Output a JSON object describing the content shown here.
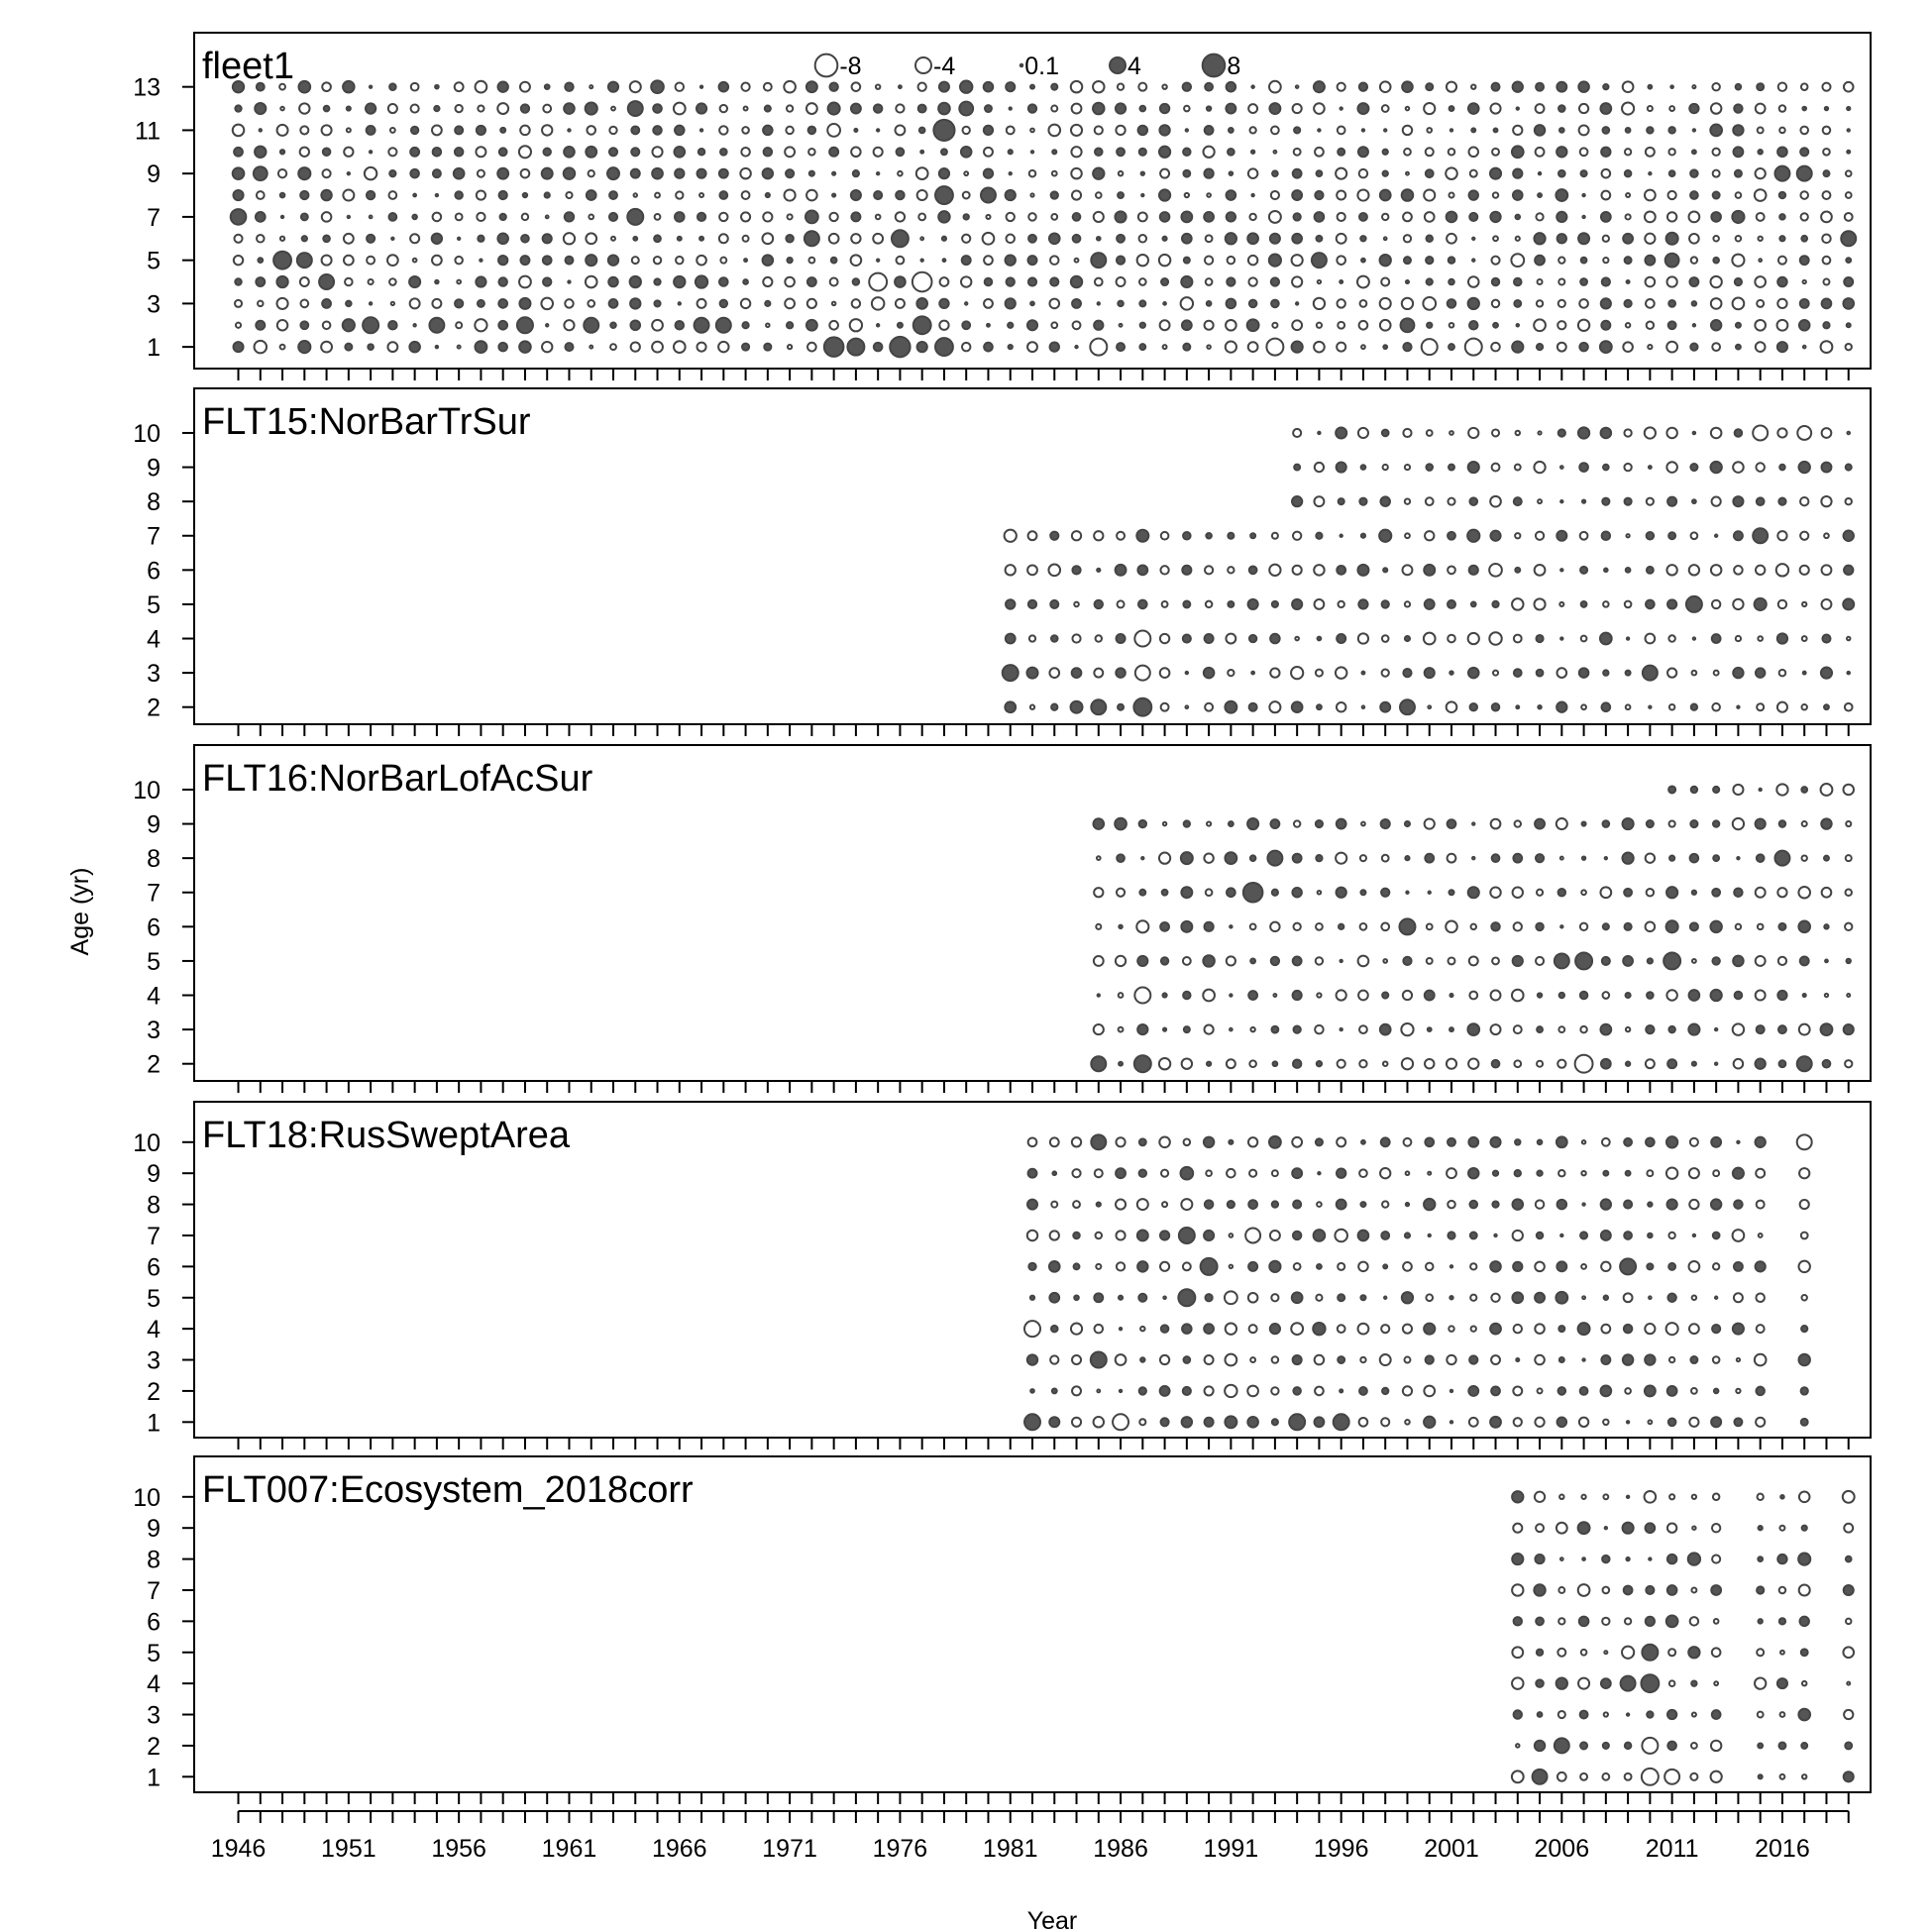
{
  "chart_data": {
    "type": "scatter",
    "subtype": "bubble residual plot (one panel per fleet)",
    "xlabel": "Year",
    "ylabel": "Age (yr)",
    "x_tick_labels": [
      "1946",
      "1951",
      "1956",
      "1961",
      "1966",
      "1971",
      "1976",
      "1981",
      "1986",
      "1991",
      "1996",
      "2001",
      "2006",
      "2011",
      "2016"
    ],
    "xlim": [
      1944,
      2020
    ],
    "legend": {
      "placement": "top-center",
      "entries": [
        {
          "label": "-8",
          "value": -8
        },
        {
          "label": "-4",
          "value": -4
        },
        {
          "label": "0.1",
          "value": 0.1
        },
        {
          "label": "4",
          "value": 4
        },
        {
          "label": "8",
          "value": 8
        }
      ]
    },
    "colors": {
      "positive_fill": "#555555",
      "negative_fill": "#ffffff",
      "stroke": "#444444"
    },
    "panels": [
      {
        "title": "fleet1",
        "years": [
          1946,
          2019
        ],
        "ages": [
          1,
          13
        ],
        "ytick_labels": [
          "1",
          "3",
          "5",
          "7",
          "9",
          "11",
          "13"
        ],
        "ylim": [
          0,
          15.5
        ],
        "highlights": [
          {
            "year": 1946,
            "age": 7,
            "value": 3.8
          },
          {
            "year": 1947,
            "age": 9,
            "value": 3.0
          },
          {
            "year": 1948,
            "age": 5,
            "value": 5.0
          },
          {
            "year": 1949,
            "age": 5,
            "value": 3.5
          },
          {
            "year": 1950,
            "age": 4,
            "value": 3.5
          },
          {
            "year": 1952,
            "age": 2,
            "value": 4.0
          },
          {
            "year": 1955,
            "age": 2,
            "value": 3.5
          },
          {
            "year": 1959,
            "age": 2,
            "value": 4.0
          },
          {
            "year": 1962,
            "age": 2,
            "value": 3.5
          },
          {
            "year": 1964,
            "age": 12,
            "value": 3.5
          },
          {
            "year": 1964,
            "age": 7,
            "value": 4.0
          },
          {
            "year": 1965,
            "age": 13,
            "value": 2.5
          },
          {
            "year": 1967,
            "age": 2,
            "value": 3.5
          },
          {
            "year": 1968,
            "age": 2,
            "value": 3.5
          },
          {
            "year": 1972,
            "age": 6,
            "value": 3.5
          },
          {
            "year": 1973,
            "age": 1,
            "value": 6.0
          },
          {
            "year": 1974,
            "age": 1,
            "value": 4.5
          },
          {
            "year": 1975,
            "age": 4,
            "value": -5.0
          },
          {
            "year": 1976,
            "age": 6,
            "value": 4.5
          },
          {
            "year": 1976,
            "age": 1,
            "value": 6.5
          },
          {
            "year": 1977,
            "age": 4,
            "value": -6.0
          },
          {
            "year": 1977,
            "age": 2,
            "value": 5.0
          },
          {
            "year": 1978,
            "age": 11,
            "value": 7.0
          },
          {
            "year": 1978,
            "age": 8,
            "value": 5.0
          },
          {
            "year": 1978,
            "age": 1,
            "value": 5.0
          },
          {
            "year": 1979,
            "age": 12,
            "value": 3.0
          },
          {
            "year": 1980,
            "age": 8,
            "value": 3.5
          },
          {
            "year": 1985,
            "age": 5,
            "value": 3.5
          },
          {
            "year": 1985,
            "age": 1,
            "value": -4.5
          },
          {
            "year": 1993,
            "age": 1,
            "value": -4.5
          },
          {
            "year": 1995,
            "age": 5,
            "value": 3.5
          },
          {
            "year": 1999,
            "age": 2,
            "value": 3.0
          },
          {
            "year": 2000,
            "age": 1,
            "value": -4.0
          },
          {
            "year": 2002,
            "age": 1,
            "value": -4.5
          },
          {
            "year": 2011,
            "age": 5,
            "value": 3.0
          },
          {
            "year": 2016,
            "age": 9,
            "value": 3.5
          },
          {
            "year": 2017,
            "age": 9,
            "value": 3.5
          },
          {
            "year": 2019,
            "age": 6,
            "value": 3.5
          }
        ]
      },
      {
        "title": "FLT15:NorBarTrSur",
        "ytick_labels": [
          "2",
          "3",
          "4",
          "5",
          "6",
          "7",
          "8",
          "9",
          "10"
        ],
        "ylim": [
          1.5,
          11.3
        ],
        "blocks": [
          {
            "years": [
              1981,
              1993
            ],
            "ages": [
              2,
              7
            ]
          },
          {
            "years": [
              1994,
              2019
            ],
            "ages": [
              2,
              10
            ]
          }
        ],
        "highlights": [
          {
            "year": 1981,
            "age": 3,
            "value": 4.0
          },
          {
            "year": 1985,
            "age": 2,
            "value": 3.5
          },
          {
            "year": 1987,
            "age": 2,
            "value": 5.0
          },
          {
            "year": 1987,
            "age": 4,
            "value": -4.0
          },
          {
            "year": 1987,
            "age": 3,
            "value": -3.5
          },
          {
            "year": 1999,
            "age": 2,
            "value": 3.5
          },
          {
            "year": 2010,
            "age": 3,
            "value": 3.5
          },
          {
            "year": 2012,
            "age": 5,
            "value": 4.0
          },
          {
            "year": 2015,
            "age": 7,
            "value": 3.5
          },
          {
            "year": 2015,
            "age": 10,
            "value": -3.5
          },
          {
            "year": 2017,
            "age": 10,
            "value": -3.0
          }
        ]
      },
      {
        "title": "FLT16:NorBarLofAcSur",
        "ytick_labels": [
          "2",
          "3",
          "4",
          "5",
          "6",
          "7",
          "8",
          "9",
          "10"
        ],
        "ylim": [
          1.5,
          11.3
        ],
        "blocks": [
          {
            "years": [
              1985,
              2010
            ],
            "ages": [
              2,
              9
            ]
          },
          {
            "years": [
              2011,
              2019
            ],
            "ages": [
              2,
              10
            ]
          }
        ],
        "highlights": [
          {
            "year": 1985,
            "age": 2,
            "value": 3.5
          },
          {
            "year": 1987,
            "age": 2,
            "value": 4.5
          },
          {
            "year": 1987,
            "age": 4,
            "value": -4.0
          },
          {
            "year": 1992,
            "age": 7,
            "value": 6.0
          },
          {
            "year": 1993,
            "age": 8,
            "value": 3.5
          },
          {
            "year": 1999,
            "age": 6,
            "value": 4.0
          },
          {
            "year": 2006,
            "age": 5,
            "value": 3.5
          },
          {
            "year": 2007,
            "age": 5,
            "value": 4.5
          },
          {
            "year": 2007,
            "age": 2,
            "value": -5.0
          },
          {
            "year": 2011,
            "age": 5,
            "value": 4.5
          },
          {
            "year": 2016,
            "age": 8,
            "value": 3.5
          },
          {
            "year": 2017,
            "age": 2,
            "value": 3.5
          }
        ]
      },
      {
        "title": "FLT18:RusSweptArea",
        "ytick_labels": [
          "1",
          "2",
          "3",
          "4",
          "5",
          "6",
          "7",
          "8",
          "9",
          "10"
        ],
        "ylim": [
          0.5,
          11.3
        ],
        "blocks": [
          {
            "years": [
              1982,
              2015
            ],
            "ages": [
              1,
              10
            ]
          },
          {
            "years": [
              2017,
              2017
            ],
            "ages": [
              1,
              10
            ]
          }
        ],
        "highlights": [
          {
            "year": 1982,
            "age": 1,
            "value": 4.0
          },
          {
            "year": 1982,
            "age": 4,
            "value": -4.0
          },
          {
            "year": 1985,
            "age": 3,
            "value": 4.0
          },
          {
            "year": 1985,
            "age": 10,
            "value": 3.5
          },
          {
            "year": 1986,
            "age": 1,
            "value": -4.0
          },
          {
            "year": 1989,
            "age": 5,
            "value": 4.5
          },
          {
            "year": 1989,
            "age": 7,
            "value": 4.0
          },
          {
            "year": 1990,
            "age": 6,
            "value": 4.5
          },
          {
            "year": 1992,
            "age": 7,
            "value": -3.5
          },
          {
            "year": 1994,
            "age": 1,
            "value": 4.0
          },
          {
            "year": 1996,
            "age": 1,
            "value": 4.0
          },
          {
            "year": 2009,
            "age": 6,
            "value": 4.0
          },
          {
            "year": 2017,
            "age": 10,
            "value": -3.5
          }
        ]
      },
      {
        "title": "FLT007:Ecosystem_2018corr",
        "ytick_labels": [
          "1",
          "2",
          "3",
          "4",
          "5",
          "6",
          "7",
          "8",
          "9",
          "10"
        ],
        "ylim": [
          0.5,
          11.3
        ],
        "blocks": [
          {
            "years": [
              2004,
              2013
            ],
            "ages": [
              1,
              10
            ]
          },
          {
            "years": [
              2015,
              2017
            ],
            "ages": [
              1,
              10
            ]
          },
          {
            "years": [
              2019,
              2019
            ],
            "ages": [
              1,
              10
            ]
          }
        ],
        "highlights": [
          {
            "year": 2005,
            "age": 1,
            "value": 3.5
          },
          {
            "year": 2006,
            "age": 2,
            "value": 3.5
          },
          {
            "year": 2009,
            "age": 4,
            "value": 3.5
          },
          {
            "year": 2010,
            "age": 4,
            "value": 5.0
          },
          {
            "year": 2010,
            "age": 5,
            "value": 4.0
          },
          {
            "year": 2010,
            "age": 1,
            "value": -4.5
          },
          {
            "year": 2010,
            "age": 2,
            "value": -4.0
          },
          {
            "year": 2011,
            "age": 1,
            "value": -3.5
          }
        ]
      }
    ]
  }
}
